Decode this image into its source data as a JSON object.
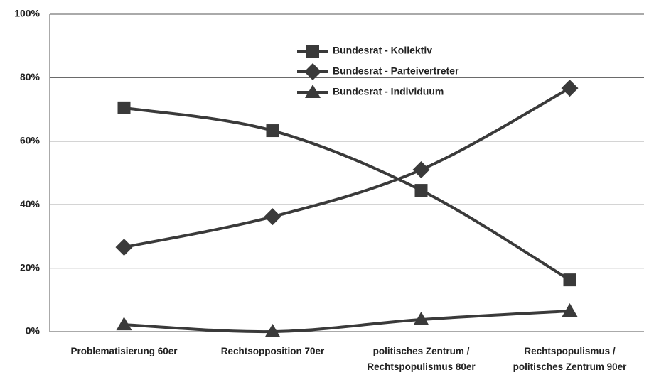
{
  "chart_data": {
    "type": "line",
    "categories": [
      "Problematisierung 60er",
      "Rechtsopposition 70er",
      "politisches Zentrum / Rechtspopulismus 80er",
      "Rechtspopulismus / politisches Zentrum 90er"
    ],
    "series": [
      {
        "name": "Bundesrat - Kollektiv",
        "color": "#3a3a3a",
        "marker": "square",
        "values": [
          70.5,
          63.3,
          44.5,
          16.3
        ]
      },
      {
        "name": "Bundesrat - Parteivertreter",
        "color": "#3a3a3a",
        "marker": "diamond",
        "values": [
          26.6,
          36.2,
          51,
          76.7
        ]
      },
      {
        "name": "Bundesrat - Individuum",
        "color": "#3a3a3a",
        "marker": "triangle",
        "values": [
          2.2,
          0,
          3.8,
          6.5
        ]
      }
    ],
    "ylim": [
      0,
      100
    ],
    "yticks": [
      {
        "value": 0,
        "label": "0%"
      },
      {
        "value": 20,
        "label": "20%"
      },
      {
        "value": 40,
        "label": "40%"
      },
      {
        "value": 60,
        "label": "60%"
      },
      {
        "value": 80,
        "label": "80%"
      },
      {
        "value": 100,
        "label": "100%"
      }
    ],
    "grid": true
  }
}
